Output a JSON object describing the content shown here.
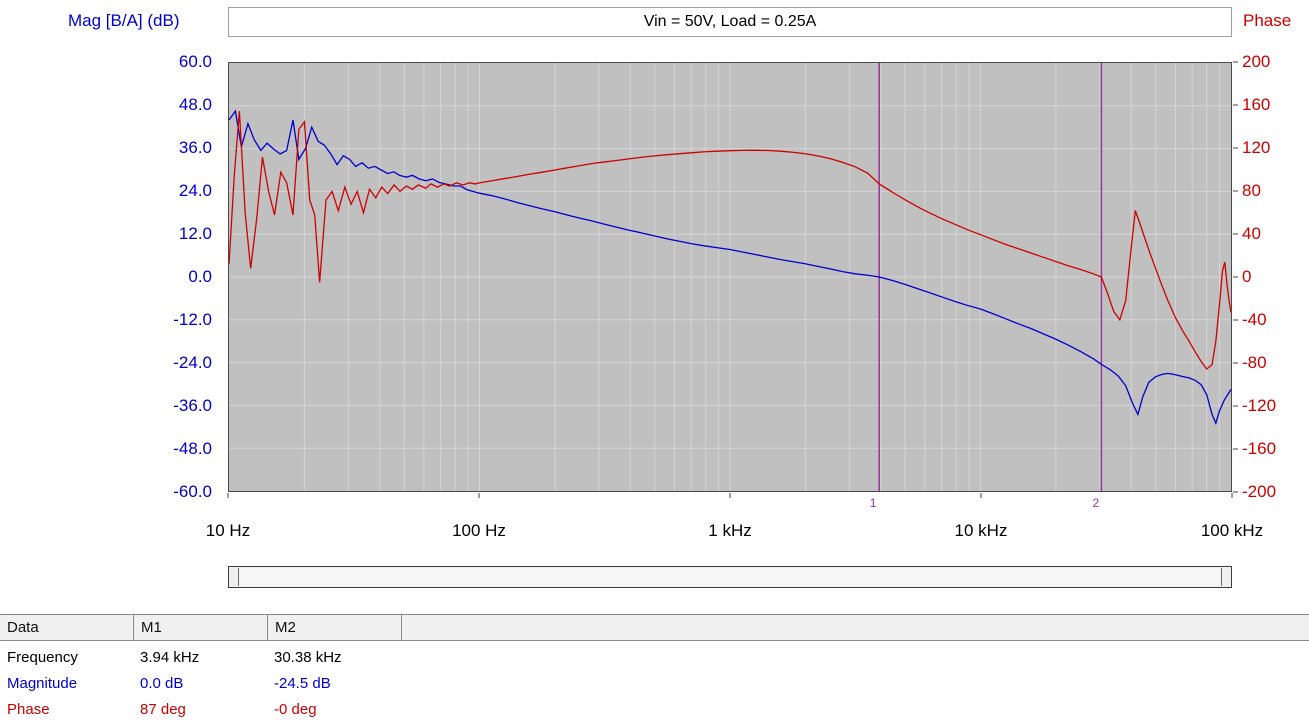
{
  "colors": {
    "magnitude": "#0000cd",
    "phase": "#cd0000",
    "marker": "#993399",
    "plot_background": "#c0c0c0",
    "grid": "#d4d4d4"
  },
  "chart_data": {
    "type": "line",
    "title": "Vin = 50V, Load = 0.25A",
    "x_axis": {
      "scale": "log",
      "range_hz": [
        10,
        100000
      ],
      "ticks": [
        {
          "hz": 10,
          "label": "10 Hz"
        },
        {
          "hz": 100,
          "label": "100 Hz"
        },
        {
          "hz": 1000,
          "label": "1 kHz"
        },
        {
          "hz": 10000,
          "label": "10 kHz"
        },
        {
          "hz": 100000,
          "label": "100 kHz"
        }
      ]
    },
    "left_axis": {
      "label": "Mag [B/A] (dB)",
      "range": [
        -60,
        60
      ],
      "tick_labels": [
        "60.0",
        "48.0",
        "36.0",
        "24.0",
        "12.0",
        "0.0",
        "-12.0",
        "-24.0",
        "-36.0",
        "-48.0",
        "-60.0"
      ]
    },
    "right_axis": {
      "label": "Phase",
      "range": [
        -200,
        200
      ],
      "tick_labels": [
        "200",
        "160",
        "120",
        "80",
        "40",
        "0",
        "-40",
        "-80",
        "-120",
        "-160",
        "-200"
      ]
    },
    "grid": true,
    "legend": "none",
    "markers": [
      {
        "id": "1",
        "hz": 3940
      },
      {
        "id": "2",
        "hz": 30380
      }
    ],
    "series": [
      {
        "name": "magnitude",
        "axis": "left",
        "unit": "dB",
        "color": "#0000cd",
        "points": [
          [
            10,
            44
          ],
          [
            10.6,
            46.5
          ],
          [
            11.2,
            36.5
          ],
          [
            11.9,
            43
          ],
          [
            12.6,
            38.5
          ],
          [
            13.4,
            35.5
          ],
          [
            14.2,
            37.5
          ],
          [
            15,
            36
          ],
          [
            16,
            34.5
          ],
          [
            17,
            35.5
          ],
          [
            18,
            44
          ],
          [
            19,
            33
          ],
          [
            20.2,
            36
          ],
          [
            21.4,
            42
          ],
          [
            22.7,
            38
          ],
          [
            24,
            37
          ],
          [
            25.5,
            34.5
          ],
          [
            27,
            31.5
          ],
          [
            28.6,
            34
          ],
          [
            30.3,
            33
          ],
          [
            32,
            31
          ],
          [
            34,
            32
          ],
          [
            36,
            30.5
          ],
          [
            38.2,
            31
          ],
          [
            40.5,
            30
          ],
          [
            43,
            29
          ],
          [
            45.5,
            29.5
          ],
          [
            48,
            28.5
          ],
          [
            51,
            28
          ],
          [
            54,
            28.5
          ],
          [
            57.5,
            27.5
          ],
          [
            61,
            27
          ],
          [
            65,
            27.5
          ],
          [
            69,
            26.5
          ],
          [
            74,
            26
          ],
          [
            79,
            25.5
          ],
          [
            84,
            25.5
          ],
          [
            89,
            24.5
          ],
          [
            94,
            24
          ],
          [
            100,
            23.5
          ],
          [
            112,
            22.8
          ],
          [
            126,
            21.9
          ],
          [
            141,
            20.9
          ],
          [
            158,
            20
          ],
          [
            178,
            19.1
          ],
          [
            200,
            18.3
          ],
          [
            224,
            17.4
          ],
          [
            251,
            16.5
          ],
          [
            282,
            15.7
          ],
          [
            316,
            14.8
          ],
          [
            355,
            13.9
          ],
          [
            398,
            13.1
          ],
          [
            447,
            12.3
          ],
          [
            501,
            11.5
          ],
          [
            562,
            10.7
          ],
          [
            631,
            10
          ],
          [
            708,
            9.3
          ],
          [
            794,
            8.7
          ],
          [
            891,
            8.2
          ],
          [
            1000,
            7.7
          ],
          [
            1122,
            7
          ],
          [
            1259,
            6.3
          ],
          [
            1413,
            5.6
          ],
          [
            1585,
            4.9
          ],
          [
            1778,
            4.3
          ],
          [
            1995,
            3.7
          ],
          [
            2239,
            3
          ],
          [
            2512,
            2.3
          ],
          [
            2818,
            1.5
          ],
          [
            3162,
            0.9
          ],
          [
            3548,
            0.5
          ],
          [
            3940,
            0
          ],
          [
            4467,
            -1
          ],
          [
            5012,
            -2.1
          ],
          [
            5623,
            -3.3
          ],
          [
            6310,
            -4.5
          ],
          [
            7079,
            -5.7
          ],
          [
            7943,
            -6.9
          ],
          [
            8913,
            -8
          ],
          [
            10000,
            -9
          ],
          [
            11220,
            -10.3
          ],
          [
            12589,
            -11.7
          ],
          [
            14125,
            -13.1
          ],
          [
            15849,
            -14.4
          ],
          [
            17783,
            -15.9
          ],
          [
            19953,
            -17.4
          ],
          [
            22387,
            -19.1
          ],
          [
            25119,
            -20.9
          ],
          [
            28184,
            -22.9
          ],
          [
            30380,
            -24.5
          ],
          [
            33000,
            -26
          ],
          [
            35500,
            -27.8
          ],
          [
            38000,
            -30.5
          ],
          [
            40500,
            -35.5
          ],
          [
            42500,
            -38.5
          ],
          [
            44500,
            -33.5
          ],
          [
            47000,
            -29.5
          ],
          [
            50000,
            -28
          ],
          [
            53000,
            -27.3
          ],
          [
            56000,
            -27
          ],
          [
            60000,
            -27.4
          ],
          [
            64000,
            -27.9
          ],
          [
            68000,
            -28.3
          ],
          [
            72000,
            -29
          ],
          [
            76000,
            -30.2
          ],
          [
            80000,
            -33
          ],
          [
            84000,
            -38.5
          ],
          [
            87000,
            -41
          ],
          [
            90000,
            -37.5
          ],
          [
            94000,
            -34.5
          ],
          [
            100000,
            -31.5
          ]
        ]
      },
      {
        "name": "phase",
        "axis": "right",
        "unit": "deg",
        "color": "#cd0000",
        "points": [
          [
            10,
            12
          ],
          [
            10.5,
            95
          ],
          [
            11,
            155
          ],
          [
            11.6,
            60
          ],
          [
            12.2,
            8
          ],
          [
            12.9,
            55
          ],
          [
            13.6,
            112
          ],
          [
            14.4,
            80
          ],
          [
            15.2,
            58
          ],
          [
            16.1,
            98
          ],
          [
            17,
            88
          ],
          [
            18,
            58
          ],
          [
            19,
            138
          ],
          [
            20,
            145
          ],
          [
            21,
            72
          ],
          [
            22,
            58
          ],
          [
            23,
            -5
          ],
          [
            24.4,
            72
          ],
          [
            25.8,
            80
          ],
          [
            27.3,
            62
          ],
          [
            29,
            84
          ],
          [
            30.7,
            68
          ],
          [
            32.5,
            80
          ],
          [
            34.4,
            60
          ],
          [
            36.4,
            82
          ],
          [
            38.5,
            74
          ],
          [
            40.7,
            84
          ],
          [
            43,
            78
          ],
          [
            45.6,
            86
          ],
          [
            48.2,
            80
          ],
          [
            51,
            85
          ],
          [
            54,
            82
          ],
          [
            57,
            86
          ],
          [
            61,
            83
          ],
          [
            64,
            87
          ],
          [
            68,
            84
          ],
          [
            72,
            87
          ],
          [
            76,
            85
          ],
          [
            81,
            88
          ],
          [
            86,
            86
          ],
          [
            91,
            88
          ],
          [
            96,
            87
          ],
          [
            100,
            88
          ],
          [
            112,
            90
          ],
          [
            126,
            92
          ],
          [
            141,
            94
          ],
          [
            158,
            96
          ],
          [
            178,
            98
          ],
          [
            200,
            100
          ],
          [
            224,
            102
          ],
          [
            251,
            104
          ],
          [
            282,
            106
          ],
          [
            316,
            107.5
          ],
          [
            355,
            109
          ],
          [
            398,
            110.5
          ],
          [
            447,
            112
          ],
          [
            501,
            113.2
          ],
          [
            562,
            114.3
          ],
          [
            631,
            115.3
          ],
          [
            708,
            116.2
          ],
          [
            794,
            117
          ],
          [
            891,
            117.6
          ],
          [
            1000,
            118
          ],
          [
            1122,
            118.3
          ],
          [
            1259,
            118.4
          ],
          [
            1413,
            118.2
          ],
          [
            1585,
            117.6
          ],
          [
            1778,
            116.6
          ],
          [
            1995,
            115.2
          ],
          [
            2239,
            113.2
          ],
          [
            2512,
            110.6
          ],
          [
            2818,
            107.2
          ],
          [
            3162,
            103
          ],
          [
            3548,
            97
          ],
          [
            3940,
            87
          ],
          [
            4467,
            79
          ],
          [
            5012,
            72
          ],
          [
            5623,
            65.5
          ],
          [
            6310,
            59.5
          ],
          [
            7079,
            54
          ],
          [
            7943,
            49
          ],
          [
            8913,
            44
          ],
          [
            10000,
            39.5
          ],
          [
            11220,
            35
          ],
          [
            12589,
            30.5
          ],
          [
            14125,
            26.5
          ],
          [
            15849,
            22.5
          ],
          [
            17783,
            18.5
          ],
          [
            19953,
            14.5
          ],
          [
            22387,
            10.5
          ],
          [
            25119,
            7
          ],
          [
            28184,
            3
          ],
          [
            30380,
            0
          ],
          [
            32000,
            -14
          ],
          [
            34000,
            -32
          ],
          [
            36000,
            -40
          ],
          [
            38000,
            -22
          ],
          [
            40000,
            28
          ],
          [
            41500,
            62
          ],
          [
            43000,
            52
          ],
          [
            45000,
            38
          ],
          [
            47500,
            22
          ],
          [
            50000,
            8
          ],
          [
            53000,
            -8
          ],
          [
            56000,
            -22
          ],
          [
            60000,
            -38
          ],
          [
            64000,
            -50
          ],
          [
            68000,
            -60
          ],
          [
            72000,
            -70
          ],
          [
            76000,
            -79
          ],
          [
            80000,
            -86
          ],
          [
            84000,
            -82
          ],
          [
            87000,
            -60
          ],
          [
            90000,
            -25
          ],
          [
            92500,
            6
          ],
          [
            94500,
            14
          ],
          [
            96500,
            -8
          ],
          [
            98500,
            -24
          ],
          [
            100000,
            -33
          ]
        ]
      }
    ]
  },
  "table": {
    "headers": [
      "Data",
      "M1",
      "M2"
    ],
    "rows": [
      {
        "label": "Frequency",
        "m1": "3.94 kHz",
        "m2": "30.38 kHz"
      },
      {
        "label": "Magnitude",
        "m1": "0.0 dB",
        "m2": "-24.5 dB"
      },
      {
        "label": "Phase",
        "m1": "87 deg",
        "m2": "-0 deg"
      }
    ]
  }
}
